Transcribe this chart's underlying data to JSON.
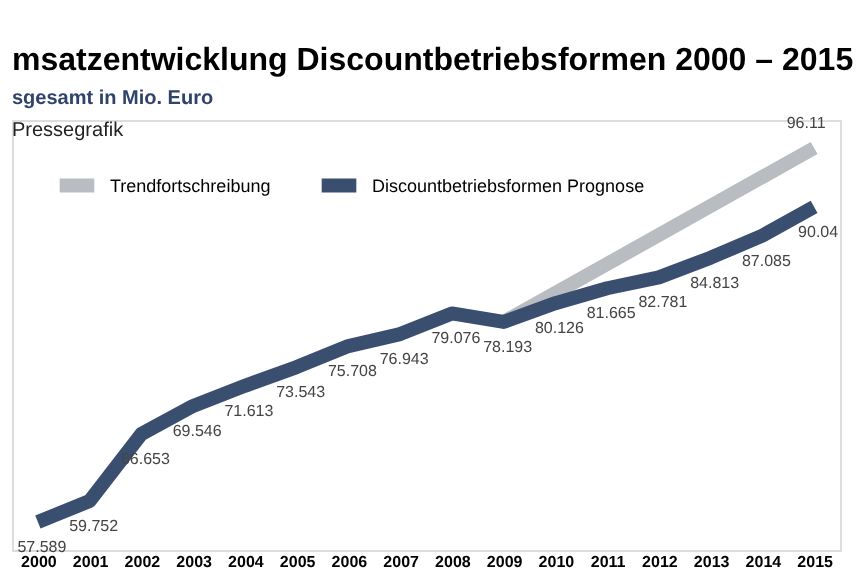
{
  "chart_data": {
    "type": "line",
    "title": "msatzentwicklung Discountbetriebsformen 2000 – 2015",
    "subtitle": "sgesamt in Mio. Euro",
    "annotations": [
      "Pressegrafik"
    ],
    "categories": [
      "2000",
      "2001",
      "2002",
      "2003",
      "2004",
      "2005",
      "2006",
      "2007",
      "2008",
      "2009",
      "2010",
      "2011",
      "2012",
      "2013",
      "2014",
      "2015"
    ],
    "series": [
      {
        "name": "Trendfortschreibung",
        "color": "#b9bdc1",
        "values": [
          null,
          null,
          null,
          null,
          null,
          null,
          null,
          null,
          null,
          78.193,
          null,
          null,
          null,
          null,
          null,
          96.11
        ],
        "value_labels": [
          null,
          null,
          null,
          null,
          null,
          null,
          null,
          null,
          null,
          null,
          null,
          null,
          null,
          null,
          null,
          "96.11"
        ]
      },
      {
        "name": "Discountbetriebsformen Prognose",
        "color": "#3a4f70",
        "values": [
          57.589,
          59.752,
          66.653,
          69.546,
          71.613,
          73.543,
          75.708,
          76.943,
          79.076,
          78.193,
          80.126,
          81.665,
          82.781,
          84.813,
          87.085,
          90.04
        ],
        "value_labels": [
          "57.589",
          "59.752",
          "66.653",
          "69.546",
          "71.613",
          "73.543",
          "75.708",
          "76.943",
          "79.076",
          "78.193",
          "80.126",
          "81.665",
          "82.781",
          "84.813",
          "87.085",
          "90.04"
        ]
      }
    ],
    "legend": "top left",
    "marker": "none",
    "line_style": "solid"
  }
}
